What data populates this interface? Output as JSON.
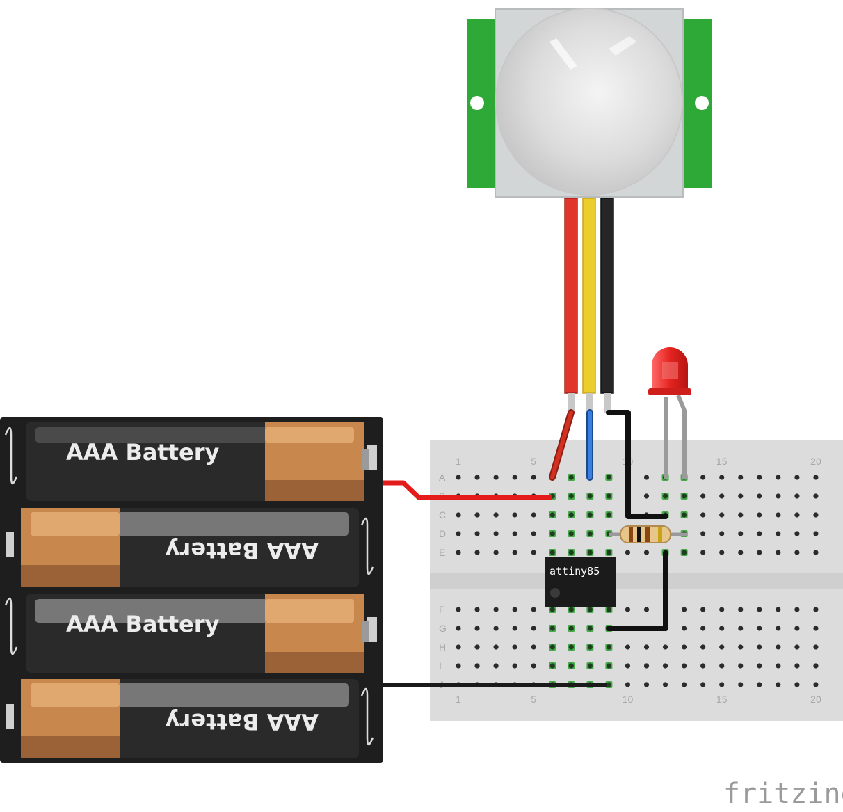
{
  "breadboard": {
    "row_labels_top": [
      "A",
      "B",
      "C",
      "D",
      "E"
    ],
    "row_labels_bottom": [
      "F",
      "G",
      "H",
      "I",
      "J"
    ],
    "column_numbers": [
      "1",
      "5",
      "10",
      "15",
      "20"
    ],
    "columns": 20
  },
  "batteries": [
    {
      "label": "AAA Battery",
      "orientation": "normal"
    },
    {
      "label": "AAA Battery",
      "orientation": "flipped"
    },
    {
      "label": "AAA Battery",
      "orientation": "normal"
    },
    {
      "label": "AAA Battery",
      "orientation": "flipped"
    }
  ],
  "chip": {
    "label": "attiny85"
  },
  "logo": {
    "text": "fritzing"
  },
  "components": {
    "sensor": "pir-motion-sensor-icon",
    "led": "red-led-icon",
    "resistor": "resistor-icon"
  },
  "colors": {
    "wire_red": "#e31b1b",
    "wire_black": "#1a1a1a",
    "wire_blue": "#2a6fd0",
    "pir_green": "#2ea836",
    "led_red": "#e52420",
    "breadboard": "#dcdcdc",
    "active_hole": "#46a84a"
  }
}
